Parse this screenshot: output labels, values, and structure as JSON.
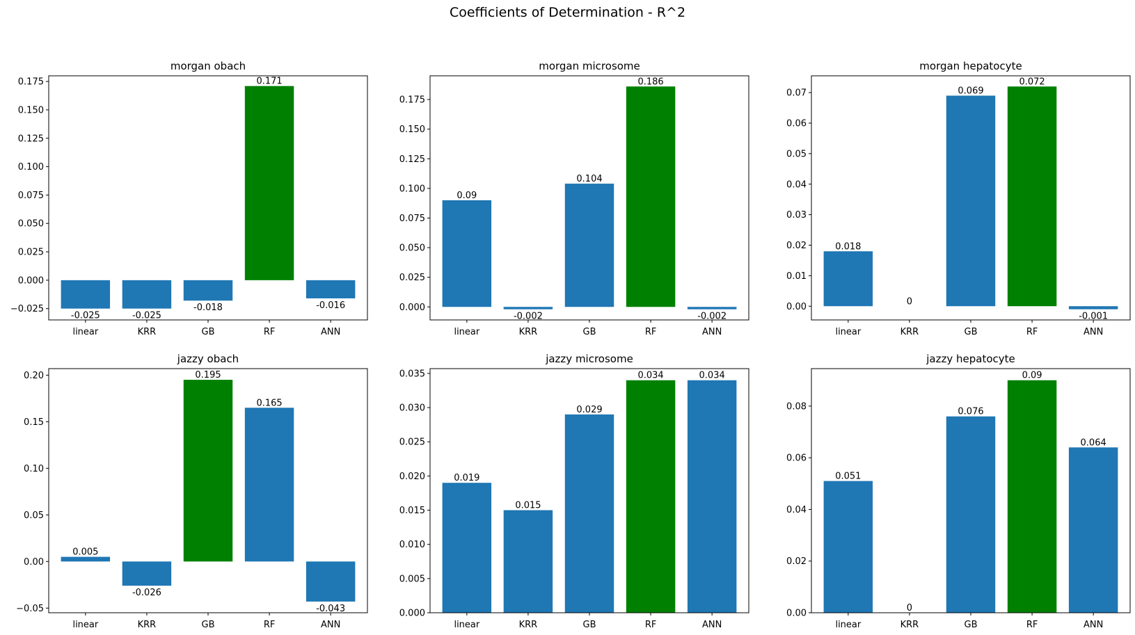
{
  "figure": {
    "title": "Coefficients of Determination - R^2"
  },
  "colors": {
    "default_bar": "#1f77b4",
    "best_bar": "#008000",
    "axis": "#000000"
  },
  "chart_data": [
    {
      "type": "bar",
      "title": "morgan obach",
      "categories": [
        "linear",
        "KRR",
        "GB",
        "RF",
        "ANN"
      ],
      "values": [
        -0.025,
        -0.025,
        -0.018,
        0.171,
        -0.016
      ],
      "data_labels": [
        "-0.025",
        "-0.025",
        "-0.018",
        "0.171",
        "-0.016"
      ],
      "highlight": "RF",
      "ylim": [
        -0.035,
        0.18
      ],
      "yticks": [
        -0.025,
        0,
        0.025,
        0.05,
        0.075,
        0.1,
        0.125,
        0.15,
        0.175
      ],
      "ytick_labels": [
        "−0.025",
        "0.000",
        "0.025",
        "0.050",
        "0.075",
        "0.100",
        "0.125",
        "0.150",
        "0.175"
      ]
    },
    {
      "type": "bar",
      "title": "morgan microsome",
      "categories": [
        "linear",
        "KRR",
        "GB",
        "RF",
        "ANN"
      ],
      "values": [
        0.09,
        -0.002,
        0.104,
        0.186,
        -0.002
      ],
      "data_labels": [
        "0.09",
        "-0.002",
        "0.104",
        "0.186",
        "-0.002"
      ],
      "highlight": "RF",
      "ylim": [
        -0.011,
        0.195
      ],
      "yticks": [
        0,
        0.025,
        0.05,
        0.075,
        0.1,
        0.125,
        0.15,
        0.175
      ],
      "ytick_labels": [
        "0.000",
        "0.025",
        "0.050",
        "0.075",
        "0.100",
        "0.125",
        "0.150",
        "0.175"
      ]
    },
    {
      "type": "bar",
      "title": "morgan hepatocyte",
      "categories": [
        "linear",
        "KRR",
        "GB",
        "RF",
        "ANN"
      ],
      "values": [
        0.018,
        0,
        0.069,
        0.072,
        -0.001
      ],
      "data_labels": [
        "0.018",
        "0",
        "0.069",
        "0.072",
        "-0.001"
      ],
      "highlight": "RF",
      "ylim": [
        -0.0045,
        0.0755
      ],
      "yticks": [
        0,
        0.01,
        0.02,
        0.03,
        0.04,
        0.05,
        0.06,
        0.07
      ],
      "ytick_labels": [
        "0.00",
        "0.01",
        "0.02",
        "0.03",
        "0.04",
        "0.05",
        "0.06",
        "0.07"
      ]
    },
    {
      "type": "bar",
      "title": "jazzy obach",
      "categories": [
        "linear",
        "KRR",
        "GB",
        "RF",
        "ANN"
      ],
      "values": [
        0.005,
        -0.026,
        0.195,
        0.165,
        -0.043
      ],
      "data_labels": [
        "0.005",
        "-0.026",
        "0.195",
        "0.165",
        "-0.043"
      ],
      "highlight": "GB",
      "ylim": [
        -0.055,
        0.207
      ],
      "yticks": [
        -0.05,
        0,
        0.05,
        0.1,
        0.15,
        0.2
      ],
      "ytick_labels": [
        "−0.05",
        "0.00",
        "0.05",
        "0.10",
        "0.15",
        "0.20"
      ]
    },
    {
      "type": "bar",
      "title": "jazzy microsome",
      "categories": [
        "linear",
        "KRR",
        "GB",
        "RF",
        "ANN"
      ],
      "values": [
        0.019,
        0.015,
        0.029,
        0.034,
        0.034
      ],
      "data_labels": [
        "0.019",
        "0.015",
        "0.029",
        "0.034",
        "0.034"
      ],
      "highlight": "RF",
      "ylim": [
        0,
        0.0357
      ],
      "yticks": [
        0,
        0.005,
        0.01,
        0.015,
        0.02,
        0.025,
        0.03,
        0.035
      ],
      "ytick_labels": [
        "0.000",
        "0.005",
        "0.010",
        "0.015",
        "0.020",
        "0.025",
        "0.030",
        "0.035"
      ]
    },
    {
      "type": "bar",
      "title": "jazzy hepatocyte",
      "categories": [
        "linear",
        "KRR",
        "GB",
        "RF",
        "ANN"
      ],
      "values": [
        0.051,
        0,
        0.076,
        0.09,
        0.064
      ],
      "data_labels": [
        "0.051",
        "0",
        "0.076",
        "0.09",
        "0.064"
      ],
      "highlight": "RF",
      "ylim": [
        0,
        0.0945
      ],
      "yticks": [
        0,
        0.02,
        0.04,
        0.06,
        0.08
      ],
      "ytick_labels": [
        "0.00",
        "0.02",
        "0.04",
        "0.06",
        "0.08"
      ]
    }
  ]
}
